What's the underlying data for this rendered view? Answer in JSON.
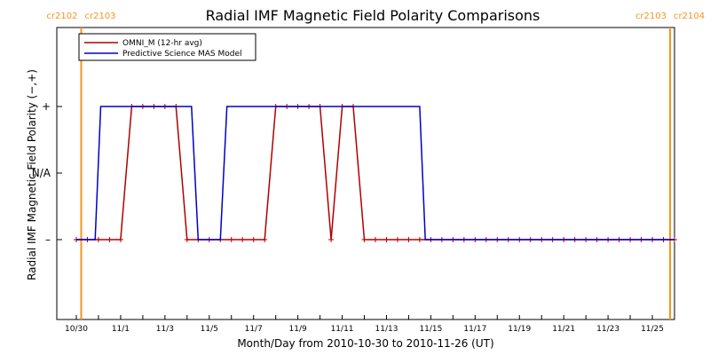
{
  "chart_data": {
    "type": "line",
    "title": "Radial IMF Magnetic Field Polarity Comparisons",
    "xlabel": "Month/Day from 2010-10-30 to 2010-11-26 (UT)",
    "ylabel": "Radial IMF Magnetic Field Polarity (−,+)",
    "x_unit": "days since 2010-10-30 00:00 UT",
    "xlim": [
      0,
      27
    ],
    "ylim": [
      -2,
      2
    ],
    "x_ticks": [
      {
        "x": 0,
        "label": "10/30"
      },
      {
        "x": 2,
        "label": "11/1"
      },
      {
        "x": 4,
        "label": "11/3"
      },
      {
        "x": 6,
        "label": "11/5"
      },
      {
        "x": 8,
        "label": "11/7"
      },
      {
        "x": 10,
        "label": "11/9"
      },
      {
        "x": 12,
        "label": "11/11"
      },
      {
        "x": 14,
        "label": "11/13"
      },
      {
        "x": 16,
        "label": "11/15"
      },
      {
        "x": 18,
        "label": "11/17"
      },
      {
        "x": 20,
        "label": "11/19"
      },
      {
        "x": 22,
        "label": "11/21"
      },
      {
        "x": 24,
        "label": "11/23"
      },
      {
        "x": 26,
        "label": "11/25"
      }
    ],
    "y_ticks": [
      {
        "y": 1,
        "label": "+"
      },
      {
        "y": 0,
        "label": "N/A"
      },
      {
        "y": -1,
        "label": "–"
      }
    ],
    "carrington_markers": [
      {
        "x": 0.22,
        "left_label": "cr2102",
        "right_label": "cr2103",
        "color": "#f7941d"
      },
      {
        "x": 26.8,
        "left_label": "cr2103",
        "right_label": "cr2104",
        "color": "#f7941d"
      }
    ],
    "legend": {
      "position": "top-left"
    },
    "series": [
      {
        "name": "OMNI_M (12-hr avg)",
        "color": "#b00000",
        "markers": true,
        "x": [
          0,
          0.5,
          1,
          1.5,
          2,
          2.5,
          3,
          3.5,
          4,
          4.5,
          5,
          5.5,
          6,
          6.5,
          7,
          7.5,
          8,
          8.5,
          9,
          9.5,
          10,
          10.5,
          11,
          11.5,
          12,
          12.5,
          13,
          13.5,
          14,
          14.5,
          15,
          15.5,
          16,
          16.5,
          17,
          17.5,
          18,
          18.5,
          19,
          19.5,
          20,
          20.5,
          21,
          21.5,
          22,
          22.5,
          23,
          23.5,
          24,
          24.5,
          25,
          25.5,
          26,
          26.5,
          27
        ],
        "values": [
          -1,
          -1,
          -1,
          -1,
          -1,
          1,
          1,
          1,
          1,
          1,
          -1,
          -1,
          -1,
          -1,
          -1,
          -1,
          -1,
          -1,
          1,
          1,
          1,
          1,
          1,
          -1,
          1,
          1,
          -1,
          -1,
          -1,
          -1,
          -1,
          -1,
          -1,
          -1,
          -1,
          -1,
          -1,
          -1,
          -1,
          -1,
          -1,
          -1,
          -1,
          -1,
          -1,
          -1,
          -1,
          -1,
          -1,
          -1,
          -1,
          -1,
          -1,
          -1,
          -1
        ]
      },
      {
        "name": "Predictive Science MAS Model",
        "color": "#0000cc",
        "markers": false,
        "x": [
          0,
          0.85,
          1.1,
          5.2,
          5.5,
          6.5,
          6.8,
          15.5,
          15.75,
          27
        ],
        "values": [
          -1,
          -1,
          1,
          1,
          -1,
          -1,
          1,
          1,
          -1,
          -1
        ]
      }
    ]
  }
}
